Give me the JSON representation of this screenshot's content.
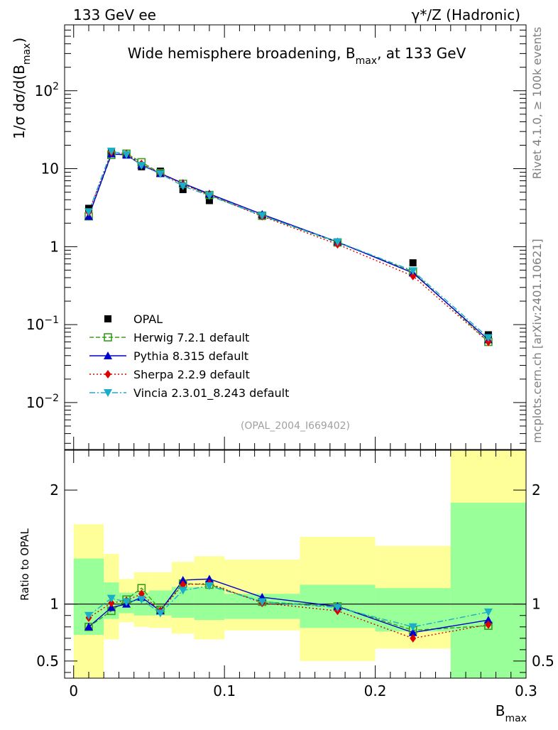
{
  "header": {
    "left": "133 GeV ee",
    "right_prefix": "γ*/Z",
    "right_suffix": "(Hadronic)"
  },
  "side_labels": {
    "rivet": "Rivet 4.1.0, ≥ 100k events",
    "site": "mcplots.cern.ch [arXiv:2401.10621]"
  },
  "chart_data": [
    {
      "type": "line",
      "panel": "main",
      "title": "Wide hemisphere broadening, B",
      "title_sub": "max",
      "title_tail": ", at 133 GeV",
      "ylabel": "1/σ  dσ/d(B",
      "ylabel_sub": "max",
      "ylabel_tail": ")",
      "yscale": "log",
      "ylim": [
        0.0025,
        700
      ],
      "xlim": [
        -0.006,
        0.3
      ],
      "yticks": [
        {
          "value": 0.01,
          "base": "10",
          "exp": "−2"
        },
        {
          "value": 0.1,
          "base": "10",
          "exp": "−1"
        },
        {
          "value": 1,
          "base": "1",
          "exp": ""
        },
        {
          "value": 10,
          "base": "10",
          "exp": ""
        },
        {
          "value": 100,
          "base": "10",
          "exp": "2"
        }
      ],
      "reference_id": "(OPAL_2004_I669402)",
      "x": [
        0.01,
        0.025,
        0.035,
        0.045,
        0.0575,
        0.0725,
        0.09,
        0.125,
        0.175,
        0.225,
        0.275
      ],
      "series": [
        {
          "name": "OPAL",
          "style": "data",
          "color": "#000000",
          "marker": "square-filled",
          "values": [
            3.1,
            16.0,
            15.0,
            10.6,
            9.3,
            5.4,
            3.9,
            2.45,
            1.15,
            0.62,
            0.074
          ]
        },
        {
          "name": "Herwig 7.2.1 default",
          "style": "dashed",
          "color": "#3a9b1c",
          "marker": "square-open",
          "values": [
            2.45,
            15.0,
            15.6,
            12.1,
            8.8,
            6.4,
            4.6,
            2.5,
            1.13,
            0.48,
            0.06
          ]
        },
        {
          "name": "Pythia 8.315 default",
          "style": "solid",
          "color": "#0000cc",
          "marker": "triangle-up",
          "values": [
            2.45,
            15.5,
            15.0,
            11.2,
            8.7,
            6.5,
            4.75,
            2.6,
            1.15,
            0.46,
            0.064
          ]
        },
        {
          "name": "Sherpa 2.2.9 default",
          "style": "dotted",
          "color": "#dd0000",
          "marker": "diamond",
          "values": [
            2.75,
            16.3,
            15.5,
            11.5,
            8.7,
            6.3,
            4.6,
            2.45,
            1.07,
            0.42,
            0.06
          ]
        },
        {
          "name": "Vincia 2.3.01_8.243 default",
          "style": "dashdot",
          "color": "#1aaec8",
          "marker": "triangle-down",
          "values": [
            2.8,
            16.8,
            15.2,
            11.0,
            8.6,
            6.0,
            4.5,
            2.5,
            1.15,
            0.49,
            0.068
          ]
        }
      ]
    },
    {
      "type": "line",
      "panel": "ratio",
      "ylabel": "Ratio to OPAL",
      "xlabel": "B",
      "xlabel_sub": "max",
      "ylim": [
        0.35,
        2.35
      ],
      "yticks": [
        0.5,
        1,
        2
      ],
      "ytick_labels": [
        "0.5",
        "1",
        "2"
      ],
      "xticks": [
        0,
        0.1,
        0.2,
        0.3
      ],
      "xtick_labels": [
        "0",
        "0.1",
        "0.2",
        "0.3"
      ],
      "bands": [
        {
          "xlo": 0.0,
          "xhi": 0.02,
          "stat": [
            0.73,
            1.4
          ],
          "total": [
            0.3,
            1.7
          ]
        },
        {
          "xlo": 0.02,
          "xhi": 0.03,
          "stat": [
            0.87,
            1.19
          ],
          "total": [
            0.69,
            1.44
          ]
        },
        {
          "xlo": 0.03,
          "xhi": 0.04,
          "stat": [
            0.92,
            1.1
          ],
          "total": [
            0.84,
            1.22
          ]
        },
        {
          "xlo": 0.04,
          "xhi": 0.05,
          "stat": [
            0.9,
            1.1
          ],
          "total": [
            0.8,
            1.28
          ]
        },
        {
          "xlo": 0.05,
          "xhi": 0.065,
          "stat": [
            0.9,
            1.12
          ],
          "total": [
            0.79,
            1.28
          ]
        },
        {
          "xlo": 0.065,
          "xhi": 0.08,
          "stat": [
            0.88,
            1.15
          ],
          "total": [
            0.74,
            1.37
          ]
        },
        {
          "xlo": 0.08,
          "xhi": 0.1,
          "stat": [
            0.86,
            1.15
          ],
          "total": [
            0.69,
            1.42
          ]
        },
        {
          "xlo": 0.1,
          "xhi": 0.15,
          "stat": [
            0.87,
            1.09
          ],
          "total": [
            0.77,
            1.39
          ]
        },
        {
          "xlo": 0.15,
          "xhi": 0.2,
          "stat": [
            0.79,
            1.17
          ],
          "total": [
            0.5,
            1.59
          ]
        },
        {
          "xlo": 0.2,
          "xhi": 0.25,
          "stat": [
            0.76,
            1.14
          ],
          "total": [
            0.61,
            1.51
          ]
        },
        {
          "xlo": 0.25,
          "xhi": 0.3,
          "stat": [
            0.35,
            1.89
          ],
          "total": [
            0.3,
            2.4
          ]
        }
      ],
      "series": [
        {
          "name": "Herwig 7.2.1 default",
          "values": [
            0.8,
            0.94,
            1.04,
            1.14,
            0.95,
            1.18,
            1.17,
            1.02,
            0.98,
            0.77,
            0.81
          ]
        },
        {
          "name": "Pythia 8.315 default",
          "values": [
            0.8,
            0.97,
            1.0,
            1.06,
            0.94,
            1.21,
            1.22,
            1.06,
            0.98,
            0.75,
            0.86
          ]
        },
        {
          "name": "Sherpa 2.2.9 default",
          "values": [
            0.88,
            1.01,
            1.03,
            1.09,
            0.94,
            1.17,
            1.18,
            1.01,
            0.94,
            0.7,
            0.82
          ]
        },
        {
          "name": "Vincia 2.3.01_8.243 default",
          "values": [
            0.9,
            1.05,
            1.02,
            1.04,
            0.92,
            1.12,
            1.16,
            1.02,
            0.97,
            0.8,
            0.93
          ]
        }
      ]
    }
  ]
}
